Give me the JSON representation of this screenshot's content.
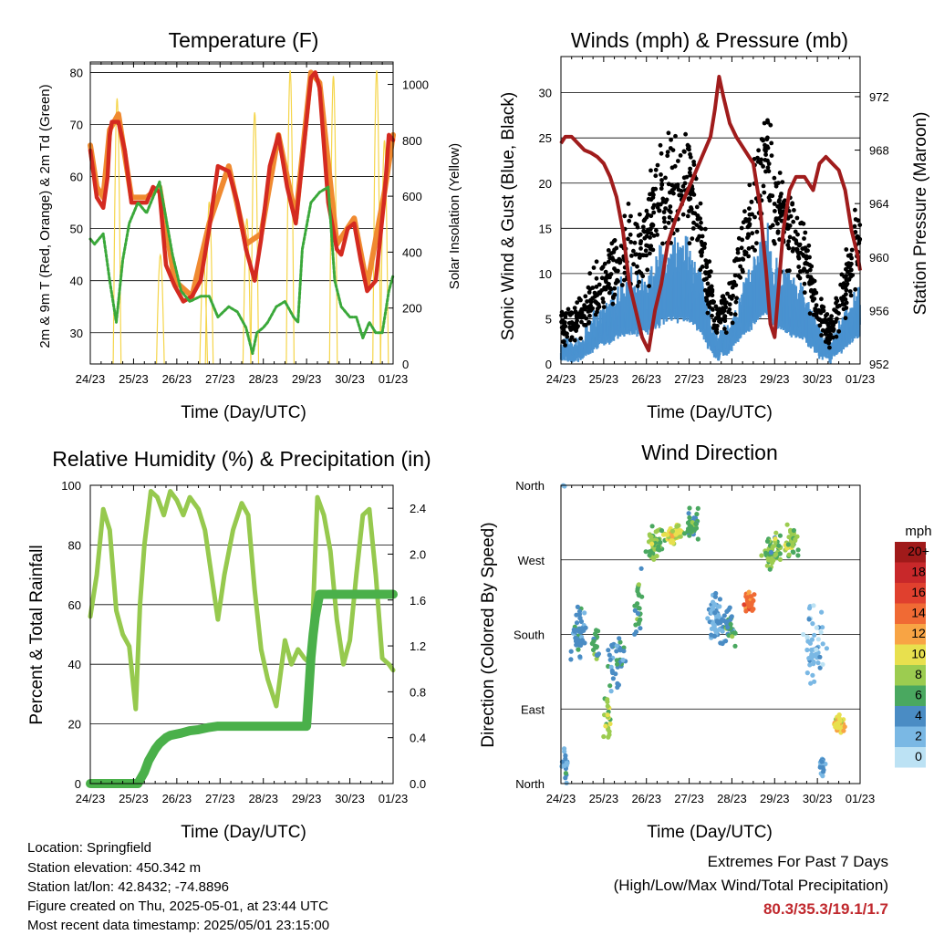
{
  "chart_data": [
    {
      "type": "line",
      "title": "Temperature (F)",
      "xlabel": "Time (Day/UTC)",
      "ylabel": "2m & 9m T (Red, Orange) & 2m Td (Green)",
      "y2label": "Solar Insolation (Yellow)",
      "x_ticks": [
        "24/23",
        "25/23",
        "26/23",
        "27/23",
        "28/23",
        "29/23",
        "30/23",
        "01/23"
      ],
      "xlim_days": [
        0,
        7
      ],
      "ylim": [
        24,
        82
      ],
      "y_ticks": [
        30,
        40,
        50,
        60,
        70,
        80
      ],
      "y2lim": [
        0,
        1080
      ],
      "y2_ticks": [
        0,
        200,
        400,
        600,
        800,
        1000
      ],
      "series": [
        {
          "name": "2m T",
          "color": "#d42a20",
          "x": [
            0,
            0.05,
            0.15,
            0.3,
            0.4,
            0.45,
            0.5,
            0.65,
            0.8,
            0.95,
            1.1,
            1.3,
            1.45,
            1.6,
            1.75,
            1.95,
            2.15,
            2.35,
            2.55,
            2.75,
            2.95,
            3.2,
            3.4,
            3.6,
            3.8,
            3.95,
            4.15,
            4.35,
            4.55,
            4.75,
            4.95,
            5.1,
            5.2,
            5.3,
            5.5,
            5.7,
            5.8,
            5.95,
            6.1,
            6.25,
            6.4,
            6.6,
            6.8,
            6.9,
            7.0
          ],
          "values": [
            65,
            62,
            56,
            54,
            60,
            68,
            70.5,
            70.5,
            65,
            55,
            55,
            55,
            58,
            57,
            43,
            39,
            36,
            37,
            40,
            50,
            62,
            61,
            55,
            46,
            40,
            48,
            62,
            68,
            58,
            51,
            67,
            79,
            80,
            77,
            55,
            46,
            45,
            50,
            51,
            44,
            38,
            40,
            56,
            68,
            67
          ]
        },
        {
          "name": "9m T",
          "color": "#f08a30",
          "x": [
            0,
            0.15,
            0.3,
            0.45,
            0.65,
            0.95,
            1.3,
            1.6,
            1.95,
            2.35,
            2.75,
            3.2,
            3.6,
            3.95,
            4.35,
            4.75,
            5.1,
            5.3,
            5.7,
            6.1,
            6.4,
            6.8,
            7.0
          ],
          "values": [
            66,
            58,
            56,
            69,
            72,
            56,
            56,
            58,
            40,
            37,
            51,
            62,
            47,
            49,
            68,
            52,
            80,
            78,
            47,
            52,
            39,
            57,
            68
          ]
        },
        {
          "name": "2m Td",
          "color": "#3aa83a",
          "x": [
            0,
            0.1,
            0.3,
            0.45,
            0.6,
            0.75,
            0.9,
            1.1,
            1.3,
            1.5,
            1.6,
            1.75,
            1.9,
            2.1,
            2.3,
            2.55,
            2.75,
            2.95,
            3.2,
            3.4,
            3.6,
            3.75,
            3.85,
            4.0,
            4.1,
            4.3,
            4.5,
            4.7,
            4.8,
            4.9,
            5.1,
            5.3,
            5.5,
            5.65,
            5.8,
            6.0,
            6.15,
            6.3,
            6.45,
            6.6,
            6.75,
            6.9,
            7.0
          ],
          "values": [
            48,
            47,
            49,
            40,
            32,
            44,
            51,
            55,
            53,
            57,
            59,
            52,
            45,
            38,
            36,
            37,
            37,
            33,
            35,
            34,
            31,
            26,
            30,
            31,
            32,
            35,
            36,
            33,
            32,
            46,
            55,
            57,
            58,
            40,
            35,
            33,
            33,
            29,
            32,
            30,
            30,
            38,
            41
          ]
        },
        {
          "name": "Solar Insolation",
          "axis": "y2",
          "color": "#f5d54a",
          "peaks": [
            {
              "day": 0.62,
              "value": 950
            },
            {
              "day": 1.62,
              "value": 390
            },
            {
              "day": 2.62,
              "value": 360
            },
            {
              "day": 2.75,
              "value": 580
            },
            {
              "day": 3.62,
              "value": 520
            },
            {
              "day": 3.8,
              "value": 900
            },
            {
              "day": 4.62,
              "value": 1050
            },
            {
              "day": 5.62,
              "value": 1030
            },
            {
              "day": 6.62,
              "value": 1050
            },
            {
              "day": 6.8,
              "value": 800
            }
          ]
        }
      ]
    },
    {
      "type": "scatter+line",
      "title": "Winds (mph) & Pressure (mb)",
      "xlabel": "Time (Day/UTC)",
      "ylabel": "Sonic Wind & Gust (Blue, Black)",
      "y2label": "Station Pressure (Maroon)",
      "x_ticks": [
        "24/23",
        "25/23",
        "26/23",
        "27/23",
        "28/23",
        "29/23",
        "30/23",
        "01/23"
      ],
      "xlim_days": [
        0,
        7
      ],
      "ylim": [
        0,
        34
      ],
      "y_ticks": [
        0,
        5,
        10,
        15,
        20,
        25,
        30
      ],
      "y2lim": [
        952,
        975
      ],
      "y2_ticks": [
        952,
        956,
        960,
        964,
        968,
        972
      ],
      "series": [
        {
          "name": "Gust",
          "color": "#000000",
          "envelope_x": [
            0,
            0.5,
            0.8,
            1.2,
            1.6,
            2.0,
            2.3,
            2.6,
            3.0,
            3.3,
            3.6,
            3.9,
            4.2,
            4.5,
            4.8,
            5.1,
            5.4,
            5.7,
            6.0,
            6.3,
            6.6,
            7.0
          ],
          "envelope_mean": [
            4,
            5,
            8,
            10,
            13,
            14,
            18,
            20,
            20,
            14,
            5,
            6,
            12,
            18,
            23,
            17,
            15,
            12,
            6,
            3,
            8,
            14
          ]
        },
        {
          "name": "Wind",
          "color": "#4a92d0",
          "envelope_x": [
            0,
            0.5,
            0.8,
            1.2,
            1.6,
            2.0,
            2.3,
            2.6,
            3.0,
            3.3,
            3.6,
            3.9,
            4.2,
            4.5,
            4.8,
            5.1,
            5.4,
            5.7,
            6.0,
            6.3,
            6.6,
            7.0
          ],
          "envelope_mean": [
            1.5,
            2,
            4,
            6,
            7,
            7,
            9,
            10,
            10,
            7,
            2,
            3,
            6,
            9,
            11,
            8,
            7,
            6,
            3,
            1.5,
            4,
            7
          ]
        },
        {
          "name": "Station Pressure",
          "axis": "y2",
          "color": "#a01c1c",
          "x": [
            0,
            0.1,
            0.25,
            0.4,
            0.55,
            0.7,
            0.85,
            1.0,
            1.15,
            1.3,
            1.45,
            1.6,
            1.75,
            1.9,
            2.05,
            2.2,
            2.35,
            2.5,
            2.7,
            2.9,
            3.1,
            3.3,
            3.5,
            3.6,
            3.7,
            3.8,
            3.95,
            4.1,
            4.3,
            4.5,
            4.65,
            4.8,
            4.9,
            5.0,
            5.1,
            5.2,
            5.35,
            5.5,
            5.7,
            5.9,
            6.05,
            6.2,
            6.35,
            6.5,
            6.65,
            6.8,
            6.95,
            7.0
          ],
          "values": [
            968.5,
            969,
            969,
            968.5,
            968,
            967.8,
            967.5,
            967,
            966,
            964.5,
            962,
            958,
            956,
            954,
            953,
            956,
            958,
            961,
            963,
            964.5,
            966,
            967.5,
            969,
            971,
            973.5,
            972,
            970,
            969,
            968,
            967,
            964,
            959,
            955,
            954,
            958,
            962,
            965,
            966,
            966,
            965,
            967,
            967.5,
            967,
            966.5,
            965,
            962,
            960,
            959
          ]
        }
      ]
    },
    {
      "type": "line",
      "title": "Relative Humidity (%) & Precipitation (in)",
      "xlabel": "Time (Day/UTC)",
      "ylabel": "Percent & Total Rainfall",
      "x_ticks": [
        "24/23",
        "25/23",
        "26/23",
        "27/23",
        "28/23",
        "29/23",
        "30/23",
        "01/23"
      ],
      "xlim_days": [
        0,
        7
      ],
      "ylim": [
        0,
        100
      ],
      "y_ticks": [
        0,
        20,
        40,
        60,
        80,
        100
      ],
      "y2lim": [
        0,
        2.6
      ],
      "y2_ticks": [
        "0.0",
        "0.4",
        "0.8",
        "1.2",
        "1.6",
        "2.0",
        "2.4"
      ],
      "series": [
        {
          "name": "Relative Humidity",
          "color": "#96c94e",
          "x": [
            0,
            0.15,
            0.3,
            0.45,
            0.6,
            0.75,
            0.9,
            1.05,
            1.15,
            1.25,
            1.4,
            1.55,
            1.7,
            1.85,
            2.0,
            2.15,
            2.3,
            2.5,
            2.65,
            2.8,
            2.95,
            3.1,
            3.3,
            3.5,
            3.65,
            3.8,
            3.95,
            4.1,
            4.3,
            4.5,
            4.65,
            4.8,
            4.95,
            5.1,
            5.25,
            5.4,
            5.55,
            5.7,
            5.85,
            6.0,
            6.15,
            6.3,
            6.45,
            6.6,
            6.75,
            6.9,
            7.0
          ],
          "values": [
            56,
            70,
            92,
            85,
            58,
            50,
            46,
            25,
            60,
            80,
            98,
            96,
            90,
            98,
            95,
            90,
            96,
            92,
            85,
            70,
            55,
            70,
            85,
            94,
            90,
            65,
            45,
            35,
            26,
            48,
            40,
            45,
            42,
            40,
            96,
            90,
            78,
            55,
            40,
            48,
            70,
            90,
            92,
            70,
            42,
            40,
            38
          ]
        },
        {
          "name": "Total Precipitation",
          "axis": "y2",
          "color": "#4ab04a",
          "x": [
            0,
            1.1,
            1.25,
            1.35,
            1.5,
            1.6,
            1.75,
            1.85,
            2.1,
            2.3,
            2.5,
            2.75,
            2.95,
            3.2,
            3.5,
            4.0,
            4.5,
            4.9,
            5.0,
            5.05,
            5.1,
            5.15,
            5.2,
            5.25,
            5.3,
            6.0,
            6.5,
            7.0
          ],
          "values": [
            0,
            0,
            0.1,
            0.2,
            0.3,
            0.35,
            0.4,
            0.42,
            0.44,
            0.46,
            0.47,
            0.49,
            0.5,
            0.5,
            0.5,
            0.5,
            0.5,
            0.5,
            0.5,
            0.8,
            1.1,
            1.3,
            1.45,
            1.55,
            1.65,
            1.65,
            1.65,
            1.65
          ]
        }
      ]
    },
    {
      "type": "scatter",
      "title": "Wind Direction",
      "xlabel": "Time (Day/UTC)",
      "ylabel": "Direction (Colored By Speed)",
      "x_ticks": [
        "24/23",
        "25/23",
        "26/23",
        "27/23",
        "28/23",
        "29/23",
        "30/23",
        "01/23"
      ],
      "xlim_days": [
        0,
        7
      ],
      "y_ticks": [
        "North",
        "East",
        "South",
        "West",
        "North"
      ],
      "ylim_degrees": [
        0,
        360
      ],
      "colorbar": {
        "title": "mph",
        "labels": [
          "20+",
          "18",
          "16",
          "14",
          "12",
          "10",
          "8",
          "6",
          "4",
          "2",
          "0"
        ],
        "colors": [
          "#a01a1a",
          "#c8282a",
          "#e0402e",
          "#f06a34",
          "#f8a444",
          "#e8e04e",
          "#9ccc50",
          "#4aa860",
          "#4a8cc4",
          "#7ab8e4",
          "#bce2f4"
        ]
      },
      "clusters": [
        {
          "day": 0.1,
          "dir": 20,
          "spread_day": 0.1,
          "spread_dir": 40,
          "speed": 3,
          "n": 20
        },
        {
          "day": 0.4,
          "dir": 180,
          "spread_day": 0.25,
          "spread_dir": 40,
          "speed": 4,
          "n": 50
        },
        {
          "day": 0.8,
          "dir": 170,
          "spread_day": 0.1,
          "spread_dir": 30,
          "speed": 6,
          "n": 20
        },
        {
          "day": 1.3,
          "dir": 150,
          "spread_day": 0.3,
          "spread_dir": 50,
          "speed": 4,
          "n": 40
        },
        {
          "day": 1.1,
          "dir": 80,
          "spread_day": 0.12,
          "spread_dir": 40,
          "speed": 8,
          "n": 20
        },
        {
          "day": 1.8,
          "dir": 220,
          "spread_day": 0.15,
          "spread_dir": 60,
          "speed": 6,
          "n": 25
        },
        {
          "day": 2.2,
          "dir": 290,
          "spread_day": 0.3,
          "spread_dir": 25,
          "speed": 7,
          "n": 60
        },
        {
          "day": 2.65,
          "dir": 300,
          "spread_day": 0.25,
          "spread_dir": 15,
          "speed": 10,
          "n": 60
        },
        {
          "day": 3.1,
          "dir": 310,
          "spread_day": 0.25,
          "spread_dir": 25,
          "speed": 6,
          "n": 40
        },
        {
          "day": 3.6,
          "dir": 200,
          "spread_day": 0.3,
          "spread_dir": 40,
          "speed": 3,
          "n": 60
        },
        {
          "day": 3.95,
          "dir": 190,
          "spread_day": 0.2,
          "spread_dir": 30,
          "speed": 5,
          "n": 40
        },
        {
          "day": 4.4,
          "dir": 220,
          "spread_day": 0.15,
          "spread_dir": 20,
          "speed": 14,
          "n": 50
        },
        {
          "day": 4.95,
          "dir": 280,
          "spread_day": 0.35,
          "spread_dir": 30,
          "speed": 7,
          "n": 60
        },
        {
          "day": 5.4,
          "dir": 290,
          "spread_day": 0.2,
          "spread_dir": 25,
          "speed": 8,
          "n": 40
        },
        {
          "day": 5.95,
          "dir": 170,
          "spread_day": 0.35,
          "spread_dir": 60,
          "speed": 2,
          "n": 50
        },
        {
          "day": 6.5,
          "dir": 70,
          "spread_day": 0.2,
          "spread_dir": 20,
          "speed": 10,
          "n": 40
        },
        {
          "day": 6.1,
          "dir": 20,
          "spread_day": 0.1,
          "spread_dir": 20,
          "speed": 3,
          "n": 15
        }
      ]
    }
  ],
  "info": {
    "location": "Location: Springfield",
    "elevation": "Station elevation: 450.342 m",
    "latlon": "Station lat/lon: 42.8432; -74.8896",
    "created": "Figure created on Thu, 2025-05-01, at 23:44 UTC",
    "recent": "Most recent data timestamp: 2025/05/01 23:15:00"
  },
  "extremes": {
    "title": "Extremes For Past 7 Days",
    "subtitle": "(High/Low/Max Wind/Total Precipitation)",
    "values": "80.3/35.3/19.1/1.7"
  }
}
